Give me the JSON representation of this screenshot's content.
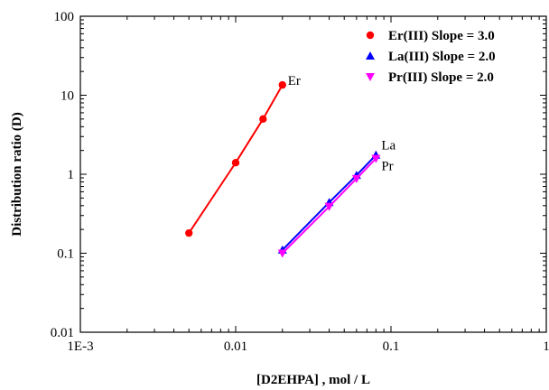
{
  "chart_data": {
    "type": "scatter",
    "xlabel": "[D2EHPA] , mol / L",
    "ylabel": "Distribution ratio (D)",
    "xscale": "log",
    "yscale": "log",
    "xlim": [
      0.001,
      1
    ],
    "ylim": [
      0.01,
      100
    ],
    "x_ticks": [
      {
        "value": 0.001,
        "label": "1E-3"
      },
      {
        "value": 0.01,
        "label": "0.01"
      },
      {
        "value": 0.1,
        "label": "0.1"
      },
      {
        "value": 1,
        "label": "1"
      }
    ],
    "y_ticks": [
      {
        "value": 0.01,
        "label": "0.01"
      },
      {
        "value": 0.1,
        "label": "0.1"
      },
      {
        "value": 1,
        "label": "1"
      },
      {
        "value": 10,
        "label": "10"
      },
      {
        "value": 100,
        "label": "100"
      }
    ],
    "grid": false,
    "legend_position": "top-right",
    "series": [
      {
        "name": "Er(III) Slope = 3.0",
        "color": "#ff0000",
        "marker": "circle",
        "label": "Er",
        "points": [
          [
            0.005,
            0.18
          ],
          [
            0.01,
            1.4
          ],
          [
            0.015,
            5.0
          ],
          [
            0.02,
            13.5
          ]
        ]
      },
      {
        "name": "La(III) Slope = 2.0",
        "color": "#0000ff",
        "marker": "triangle-up",
        "label": "La",
        "points": [
          [
            0.02,
            0.11
          ],
          [
            0.04,
            0.44
          ],
          [
            0.06,
            0.97
          ],
          [
            0.08,
            1.75
          ]
        ]
      },
      {
        "name": "Pr(III) Slope = 2.0",
        "color": "#ff00ff",
        "marker": "triangle-down",
        "label": "Pr",
        "points": [
          [
            0.02,
            0.1
          ],
          [
            0.04,
            0.39
          ],
          [
            0.06,
            0.88
          ],
          [
            0.08,
            1.58
          ]
        ]
      }
    ]
  }
}
